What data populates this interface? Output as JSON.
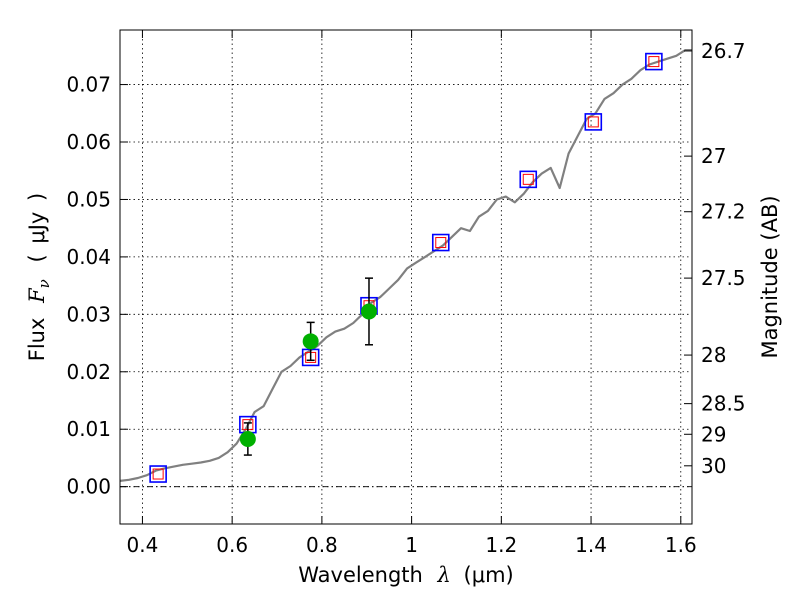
{
  "chart_data": {
    "type": "line",
    "xlabel_parts": {
      "text": "Wavelength",
      "symbol": "λ",
      "open": "(",
      "unit": "μm",
      "close": ")"
    },
    "ylabel_parts": {
      "text": "Flux",
      "symbol": "F",
      "sub": "ν",
      "open": "(",
      "unit": "μJy",
      "close": ")"
    },
    "y2label": "Magnitude (AB)",
    "xlim": [
      0.35,
      1.625
    ],
    "ylim": [
      -0.0065,
      0.0795
    ],
    "xticks": [
      0.4,
      0.6,
      0.8,
      1.0,
      1.2,
      1.4,
      1.6
    ],
    "xtick_labels": [
      "0.4",
      "0.6",
      "0.8",
      "1",
      "1.2",
      "1.4",
      "1.6"
    ],
    "yticks": [
      0.0,
      0.01,
      0.02,
      0.03,
      0.04,
      0.05,
      0.06,
      0.07
    ],
    "ytick_labels": [
      "0.00",
      "0.01",
      "0.02",
      "0.03",
      "0.04",
      "0.05",
      "0.06",
      "0.07"
    ],
    "y2_ticks": [
      {
        "label": "26.7",
        "mag": 26.7
      },
      {
        "label": "27",
        "mag": 27.0
      },
      {
        "label": "27.2",
        "mag": 27.2
      },
      {
        "label": "27.5",
        "mag": 27.5
      },
      {
        "label": "28",
        "mag": 28.0
      },
      {
        "label": "28.5",
        "mag": 28.5
      },
      {
        "label": "29",
        "mag": 29.0
      },
      {
        "label": "30",
        "mag": 30.0
      }
    ],
    "grid": true,
    "colors": {
      "spectrum": "#808080",
      "model_box": "#0000ff",
      "model_line": "#ff0000",
      "observed": "#00b000",
      "errorbar": "#000000",
      "zero_line": "#000000"
    },
    "series": [
      {
        "kind": "spectrum",
        "x": [
          0.35,
          0.37,
          0.39,
          0.41,
          0.43,
          0.45,
          0.47,
          0.49,
          0.51,
          0.53,
          0.55,
          0.57,
          0.59,
          0.61,
          0.63,
          0.65,
          0.67,
          0.69,
          0.71,
          0.73,
          0.75,
          0.77,
          0.79,
          0.81,
          0.83,
          0.85,
          0.87,
          0.89,
          0.91,
          0.93,
          0.95,
          0.97,
          0.99,
          1.01,
          1.03,
          1.05,
          1.07,
          1.09,
          1.11,
          1.13,
          1.15,
          1.17,
          1.19,
          1.21,
          1.23,
          1.25,
          1.27,
          1.29,
          1.31,
          1.33,
          1.35,
          1.37,
          1.39,
          1.41,
          1.43,
          1.45,
          1.47,
          1.49,
          1.51,
          1.53,
          1.55,
          1.57,
          1.59,
          1.61,
          1.625
        ],
        "y": [
          0.001,
          0.0012,
          0.0015,
          0.002,
          0.0028,
          0.0032,
          0.0035,
          0.0038,
          0.004,
          0.0042,
          0.0045,
          0.005,
          0.006,
          0.0075,
          0.01,
          0.013,
          0.014,
          0.017,
          0.02,
          0.021,
          0.0225,
          0.0235,
          0.0245,
          0.026,
          0.027,
          0.0275,
          0.0285,
          0.03,
          0.032,
          0.033,
          0.0345,
          0.036,
          0.038,
          0.039,
          0.04,
          0.041,
          0.042,
          0.0435,
          0.045,
          0.0445,
          0.047,
          0.048,
          0.05,
          0.0505,
          0.0495,
          0.051,
          0.053,
          0.0545,
          0.0555,
          0.052,
          0.058,
          0.061,
          0.064,
          0.065,
          0.0675,
          0.0685,
          0.07,
          0.071,
          0.0725,
          0.0735,
          0.074,
          0.0745,
          0.075,
          0.076,
          0.076
        ]
      },
      {
        "kind": "model_boxes",
        "x": [
          0.435,
          0.635,
          0.775,
          0.905,
          1.065,
          1.26,
          1.405,
          1.54
        ],
        "y": [
          0.0022,
          0.0108,
          0.0225,
          0.0315,
          0.0425,
          0.0535,
          0.0635,
          0.074
        ]
      },
      {
        "kind": "observed",
        "x": [
          0.635,
          0.775,
          0.905
        ],
        "y": [
          0.0083,
          0.0253,
          0.0305
        ],
        "yerr": [
          0.0028,
          0.0033,
          0.0058
        ]
      }
    ]
  }
}
